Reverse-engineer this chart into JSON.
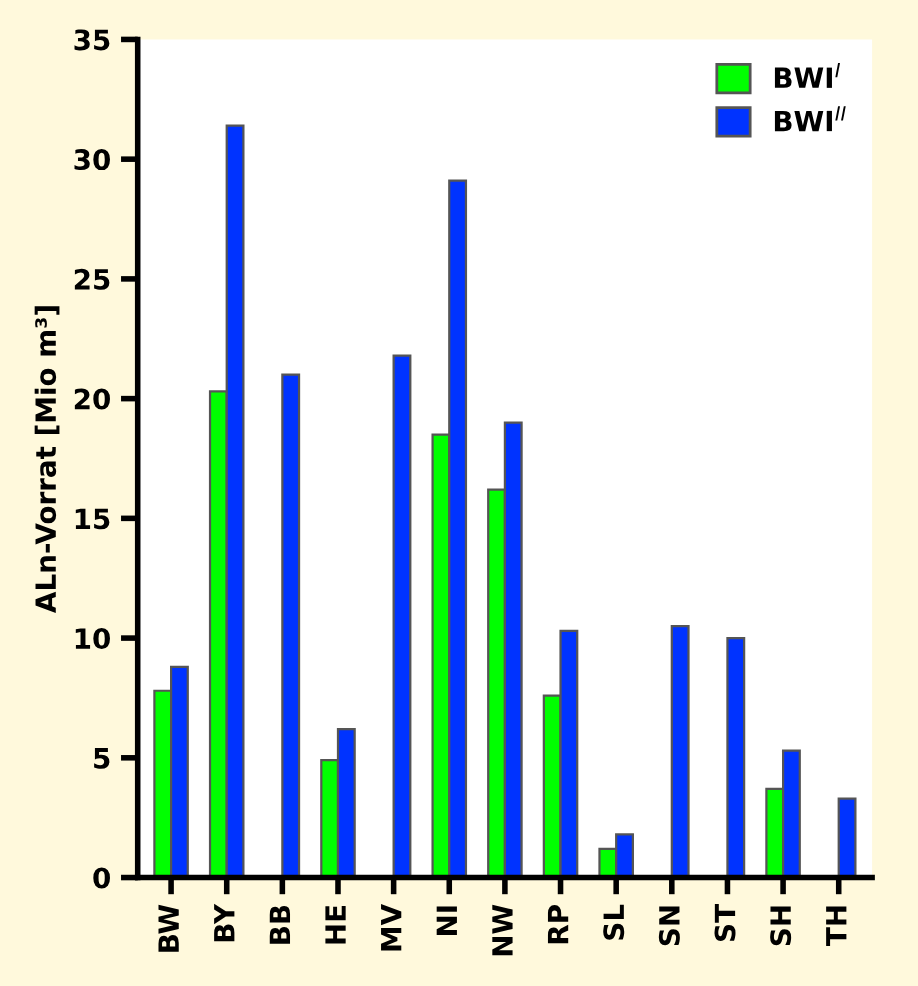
{
  "chart_data": {
    "type": "bar",
    "ylabel": "ALn-Vorrat [Mio m³]",
    "categories": [
      "BW",
      "BY",
      "BB",
      "HE",
      "MV",
      "NI",
      "NW",
      "RP",
      "SL",
      "SN",
      "ST",
      "SH",
      "TH"
    ],
    "series": [
      {
        "name": "BWI$^{I}$",
        "color": "#00ff00",
        "values": [
          7.8,
          20.3,
          null,
          4.9,
          null,
          18.5,
          16.2,
          7.6,
          1.2,
          null,
          null,
          3.7,
          null
        ]
      },
      {
        "name": "BWI$^{II}$",
        "color": "#0033ff",
        "values": [
          8.8,
          31.4,
          21.0,
          6.2,
          21.8,
          29.1,
          19.0,
          10.3,
          1.8,
          10.5,
          10.0,
          5.3,
          3.3
        ]
      }
    ],
    "ylim": [
      0,
      35
    ],
    "yticks": [
      0,
      5,
      10,
      15,
      20,
      25,
      30,
      35
    ],
    "grid": false,
    "legend": "top right"
  }
}
